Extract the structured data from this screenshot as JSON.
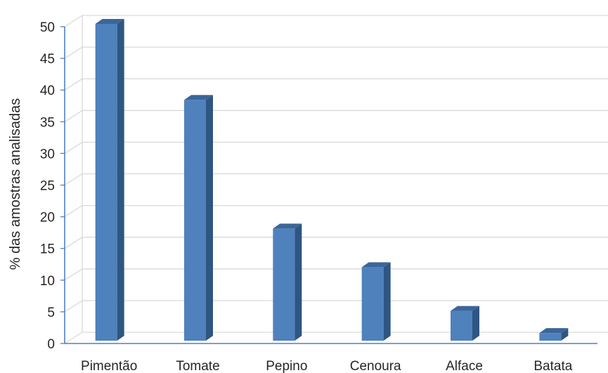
{
  "chart_data": {
    "type": "bar",
    "style": "3d-column",
    "categories": [
      "Pimentão",
      "Tomate",
      "Pepino",
      "Cenoura",
      "Alface",
      "Batata"
    ],
    "values": [
      50,
      38,
      17.7,
      11.6,
      4.7,
      1.2
    ],
    "title": "",
    "xlabel": "",
    "ylabel": "% das amostras analisadas",
    "ylim": [
      0,
      50
    ],
    "yticks": [
      0,
      5,
      10,
      15,
      20,
      25,
      30,
      35,
      40,
      45,
      50
    ],
    "grid": true,
    "legend": false,
    "colors": {
      "bar_front": "#4f81bd",
      "bar_side": "#2f5583",
      "bar_top": "#3a6699",
      "grid": "#d9d9d9",
      "axis": "#4f81bd"
    }
  }
}
